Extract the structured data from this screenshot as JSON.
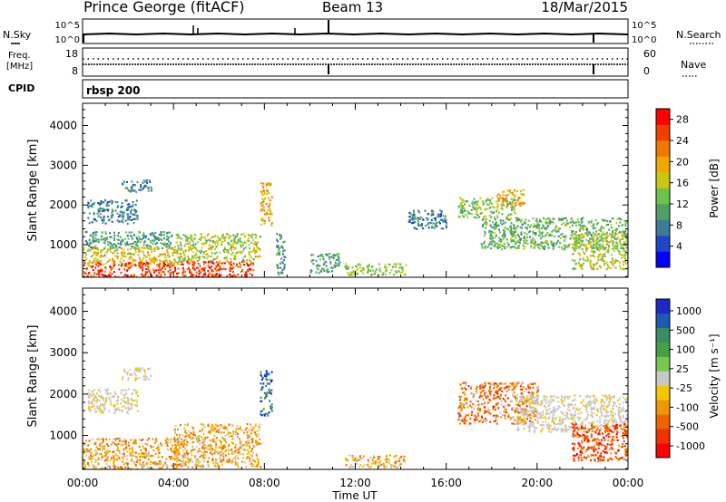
{
  "header": {
    "station": "Prince George (fitACF)",
    "beam": "Beam 13",
    "date": "18/Mar/2015"
  },
  "strip_labels": {
    "nsky": "N.Sky",
    "nsky_ticks": [
      "10^5",
      "10^0"
    ],
    "nsearch": "N.Search",
    "nsearch_ticks": [
      "10^5",
      "10^0"
    ],
    "freq_line1": "Freq.",
    "freq_line2": "[MHz]",
    "freq_ticks": [
      "18",
      "8"
    ],
    "nave": "Nave",
    "nave_ticks": [
      "60",
      "0"
    ],
    "cpid": "CPID",
    "cpid_value": "rbsp 200"
  },
  "chart_data": [
    {
      "type": "heatmap",
      "name": "power",
      "xlabel": "Time UT",
      "ylabel": "Slant Range [km]",
      "x_ticks": [
        "00:00",
        "04:00",
        "08:00",
        "12:00",
        "16:00",
        "20:00",
        "00:00"
      ],
      "xlim_hours": [
        0,
        24
      ],
      "y_ticks": [
        1000,
        2000,
        3000,
        4000
      ],
      "ylim_km": [
        180,
        4560
      ],
      "colorbar": {
        "label": "Power [dB]",
        "ticks": [
          4,
          8,
          12,
          16,
          20,
          24,
          28
        ],
        "range": [
          0,
          30
        ],
        "colors": [
          "#0000ff",
          "#1e46c8",
          "#3c7c96",
          "#4fa067",
          "#6cc34c",
          "#c8c814",
          "#f0a800",
          "#f07800",
          "#f04000",
          "#ff0000"
        ]
      },
      "regions": [
        {
          "t": [
            0.2,
            2.4
          ],
          "r": [
            1550,
            2150
          ],
          "level": 8
        },
        {
          "t": [
            1.7,
            3.0
          ],
          "r": [
            2350,
            2650
          ],
          "level": 8
        },
        {
          "t": [
            0.1,
            4.0
          ],
          "r": [
            900,
            1350
          ],
          "level": 10
        },
        {
          "t": [
            0.0,
            4.5
          ],
          "r": [
            500,
            950
          ],
          "level": 18
        },
        {
          "t": [
            0.0,
            7.5
          ],
          "r": [
            200,
            600
          ],
          "level": 26
        },
        {
          "t": [
            4.0,
            7.8
          ],
          "r": [
            600,
            1300
          ],
          "level": 15
        },
        {
          "t": [
            7.8,
            8.3
          ],
          "r": [
            1500,
            2600
          ],
          "level": 20
        },
        {
          "t": [
            8.5,
            8.9
          ],
          "r": [
            250,
            1300
          ],
          "level": 10
        },
        {
          "t": [
            10.0,
            11.3
          ],
          "r": [
            300,
            800
          ],
          "level": 10
        },
        {
          "t": [
            11.5,
            14.2
          ],
          "r": [
            250,
            550
          ],
          "level": 14
        },
        {
          "t": [
            14.3,
            16.0
          ],
          "r": [
            1400,
            1900
          ],
          "level": 8
        },
        {
          "t": [
            16.5,
            19.0
          ],
          "r": [
            1700,
            2200
          ],
          "level": 14
        },
        {
          "t": [
            17.5,
            24.0
          ],
          "r": [
            900,
            1700
          ],
          "level": 12
        },
        {
          "t": [
            18.2,
            19.4
          ],
          "r": [
            2000,
            2400
          ],
          "level": 20
        },
        {
          "t": [
            21.5,
            24.0
          ],
          "r": [
            400,
            1300
          ],
          "level": 16
        }
      ]
    },
    {
      "type": "heatmap",
      "name": "velocity",
      "xlabel": "Time UT",
      "ylabel": "Slant Range [km]",
      "x_ticks": [
        "00:00",
        "04:00",
        "08:00",
        "12:00",
        "16:00",
        "20:00",
        "00:00"
      ],
      "xlim_hours": [
        0,
        24
      ],
      "y_ticks": [
        1000,
        2000,
        3000,
        4000
      ],
      "ylim_km": [
        180,
        4560
      ],
      "colorbar": {
        "label": "Velocity [m s⁻¹]",
        "ticks": [
          "1000",
          "500",
          "100",
          "25",
          "-25",
          "-100",
          "-500",
          "-1000"
        ],
        "colors": [
          "#1e28c8",
          "#1e5ab4",
          "#3c8c64",
          "#46a046",
          "#78c850",
          "#c8c8c8",
          "#f0c800",
          "#f09600",
          "#f06400",
          "#f03200",
          "#ff0000"
        ]
      },
      "regions": [
        {
          "t": [
            0.2,
            2.4
          ],
          "r": [
            1550,
            2150
          ],
          "v": "-25 to 25"
        },
        {
          "t": [
            1.7,
            3.0
          ],
          "r": [
            2350,
            2650
          ],
          "v": "-25 to 25"
        },
        {
          "t": [
            0.0,
            4.5
          ],
          "r": [
            200,
            950
          ],
          "v": "-100 to -25"
        },
        {
          "t": [
            4.0,
            7.8
          ],
          "r": [
            250,
            1300
          ],
          "v": "-100 to -25"
        },
        {
          "t": [
            7.8,
            8.3
          ],
          "r": [
            1500,
            2600
          ],
          "v": "100 to 1000"
        },
        {
          "t": [
            11.5,
            14.2
          ],
          "r": [
            250,
            550
          ],
          "v": "-100 to -25"
        },
        {
          "t": [
            16.5,
            20.0
          ],
          "r": [
            1300,
            2300
          ],
          "v": "-500 to -100"
        },
        {
          "t": [
            19.0,
            24.0
          ],
          "r": [
            1100,
            2000
          ],
          "v": "-25 to 25"
        },
        {
          "t": [
            21.5,
            24.0
          ],
          "r": [
            400,
            1300
          ],
          "v": "-1000 to -100"
        }
      ]
    }
  ]
}
